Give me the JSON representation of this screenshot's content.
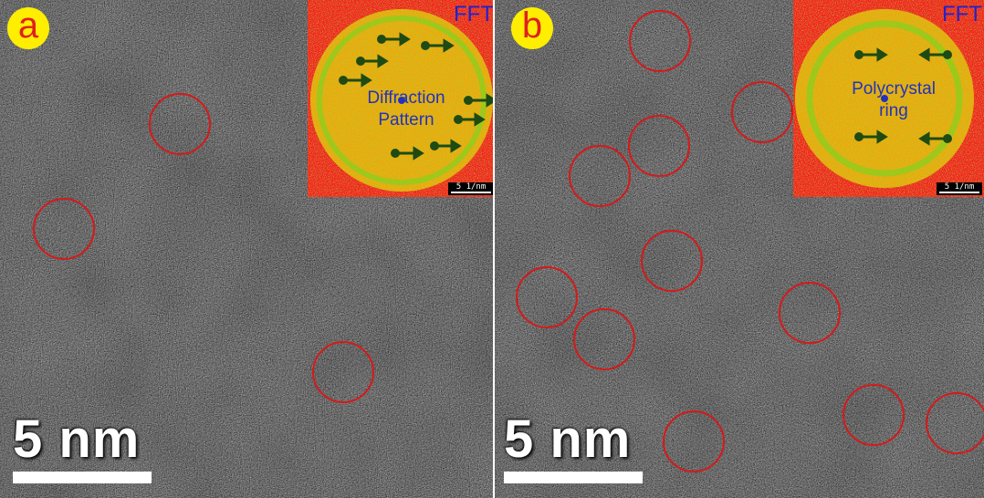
{
  "panels": [
    {
      "label": "a",
      "scale_text": "5 nm",
      "inset": {
        "fft_label": "FFT",
        "annotation_lines": [
          "Diffraction",
          "Pattern"
        ],
        "scale_text": "5 1/nm"
      }
    },
    {
      "label": "b",
      "scale_text": "5 nm",
      "inset": {
        "fft_label": "FFT",
        "annotation_lines": [
          "Polycrystal",
          "ring"
        ],
        "scale_text": "5 1/nm"
      }
    }
  ],
  "colors": {
    "circle": "#d41a1a",
    "badge_bg": "#ffee00",
    "badge_text": "#e02020",
    "fft_bg": "#ff1a1a",
    "fft_ring": "#f0e000",
    "fft_text": "#2233bb",
    "arrow": "#1e4a14"
  }
}
